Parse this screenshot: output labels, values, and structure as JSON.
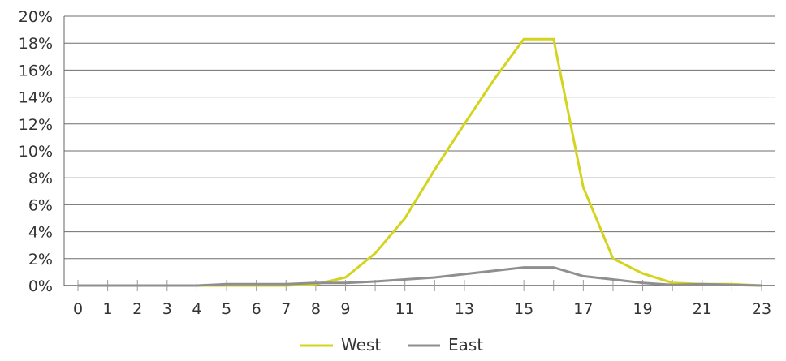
{
  "chart_data": {
    "type": "line",
    "x": [
      0,
      1,
      2,
      3,
      4,
      5,
      6,
      7,
      8,
      9,
      10,
      11,
      12,
      13,
      14,
      15,
      16,
      17,
      18,
      19,
      20,
      21,
      22,
      23
    ],
    "x_tick_labels": [
      "0",
      "1",
      "2",
      "3",
      "4",
      "5",
      "6",
      "7",
      "8",
      "9",
      "11",
      "13",
      "15",
      "17",
      "19",
      "21",
      "23"
    ],
    "y_tick_labels": [
      "0%",
      "2%",
      "4%",
      "6%",
      "8%",
      "10%",
      "12%",
      "14%",
      "16%",
      "18%",
      "20%"
    ],
    "xlim": [
      0,
      23
    ],
    "ylim": [
      0,
      20
    ],
    "y_unit": "%",
    "grid": "horizontal",
    "legend_position": "bottom",
    "xlabel": "",
    "ylabel": "",
    "title": "",
    "series": [
      {
        "name": "West",
        "color": "#d4d41e",
        "values": [
          0,
          0,
          0,
          0,
          0,
          0,
          0,
          0,
          0.1,
          0.6,
          2.4,
          5.0,
          8.6,
          12.0,
          15.3,
          18.3,
          18.3,
          7.3,
          2.0,
          0.9,
          0.2,
          0.1,
          0.1,
          0
        ]
      },
      {
        "name": "East",
        "color": "#8f8f8f",
        "values": [
          0,
          0,
          0,
          0,
          0,
          0.1,
          0.1,
          0.1,
          0.2,
          0.2,
          0.3,
          0.45,
          0.6,
          0.85,
          1.1,
          1.35,
          1.35,
          0.7,
          0.45,
          0.2,
          0.05,
          0.1,
          0.05,
          0
        ]
      }
    ]
  }
}
